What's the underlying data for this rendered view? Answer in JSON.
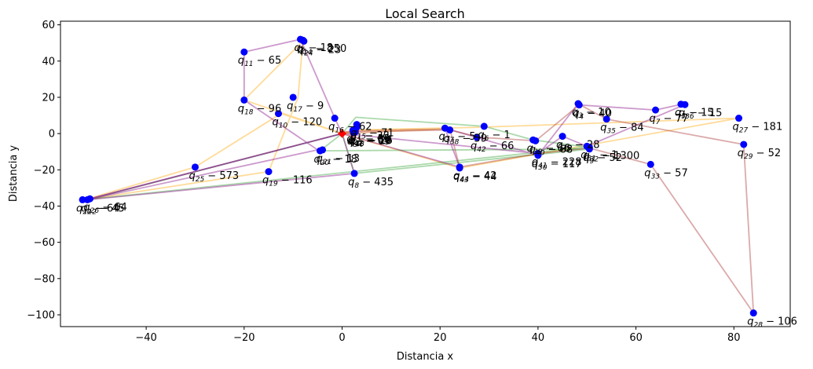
{
  "chart_data": {
    "type": "scatter",
    "title": "Local Search",
    "xlabel": "Distancia x",
    "ylabel": "Distancia y",
    "xlim": [
      -57.5,
      91.5
    ],
    "ylim": [
      -106.5,
      62
    ],
    "xticks": [
      -40,
      -20,
      0,
      20,
      40,
      60,
      80
    ],
    "yticks": [
      -100,
      -80,
      -60,
      -40,
      -20,
      0,
      20,
      40,
      60
    ],
    "grid": false,
    "point_color": "#0000ff",
    "depot": {
      "x": 0,
      "y": 0,
      "color": "#ff0000",
      "marker": "diamond"
    },
    "points": [
      {
        "x": 3.0,
        "y": 3.5,
        "label": "q_{1}-33"
      },
      {
        "x": -8.5,
        "y": 52.0,
        "label": "q_{2}-18"
      },
      {
        "x": 48.2,
        "y": 16.5,
        "label": "q_{3}-10"
      },
      {
        "x": 48.4,
        "y": 15.8,
        "label": "q_{4}-40"
      },
      {
        "x": 69.2,
        "y": 16.2,
        "label": "q_{5}-15"
      },
      {
        "x": 29.0,
        "y": 4.0,
        "label": "q_{6}-1"
      },
      {
        "x": 64.0,
        "y": 13.0,
        "label": "q_{7}-77"
      },
      {
        "x": 2.5,
        "y": -22.0,
        "label": "q_{8}-435"
      },
      {
        "x": 50.5,
        "y": -8.5,
        "label": "q_{9}-52"
      },
      {
        "x": -13.0,
        "y": 11.0,
        "label": "q_{10}-120"
      },
      {
        "x": -20.0,
        "y": 45.0,
        "label": "q_{11}-65"
      },
      {
        "x": -52.0,
        "y": -36.5,
        "label": "q_{12}-45"
      },
      {
        "x": 2.7,
        "y": 1.0,
        "label": "q_{13}-26"
      },
      {
        "x": -8.0,
        "y": 51.5,
        "label": "q_{14}-250"
      },
      {
        "x": 3.0,
        "y": 5.0,
        "label": "q_{15}-71"
      },
      {
        "x": -1.5,
        "y": 8.5,
        "label": "q_{16}-62"
      },
      {
        "x": -10.0,
        "y": 20.0,
        "label": "q_{17}-9"
      },
      {
        "x": -20.0,
        "y": 18.5,
        "label": "q_{18}-96"
      },
      {
        "x": -15.0,
        "y": -21.0,
        "label": "q_{19}-116"
      },
      {
        "x": -4.5,
        "y": -9.5,
        "label": "q_{20}-18"
      },
      {
        "x": -4.0,
        "y": -9.0,
        "label": "q_{21}-13"
      },
      {
        "x": -53.0,
        "y": -36.5,
        "label": "q_{22}-64"
      },
      {
        "x": 2.2,
        "y": 1.8,
        "label": "q_{23}-65"
      },
      {
        "x": -7.8,
        "y": 51.0,
        "label": "q_{24}-23"
      },
      {
        "x": -30.0,
        "y": -18.5,
        "label": "q_{25}-573"
      },
      {
        "x": -51.5,
        "y": -36.0,
        "label": "q_{26}-64"
      },
      {
        "x": 81.0,
        "y": 8.5,
        "label": "q_{27}-181"
      },
      {
        "x": 84.0,
        "y": -99.0,
        "label": "q_{28}-106"
      },
      {
        "x": 82.0,
        "y": -6.0,
        "label": "q_{29}-52"
      },
      {
        "x": 40.0,
        "y": -12.0,
        "label": "q_{30}-117"
      },
      {
        "x": 50.0,
        "y": -7.0,
        "label": "q_{31}-1"
      },
      {
        "x": 50.5,
        "y": -7.5,
        "label": "q_{32}-1300"
      },
      {
        "x": 63.0,
        "y": -17.0,
        "label": "q_{33}-57"
      },
      {
        "x": 2.3,
        "y": 0.5,
        "label": "q_{34}-69"
      },
      {
        "x": 54.0,
        "y": 8.0,
        "label": "q_{35}-84"
      },
      {
        "x": 70.0,
        "y": 16.0,
        "label": "q_{36}-15"
      },
      {
        "x": 21.0,
        "y": 3.0,
        "label": "q_{37}-5"
      },
      {
        "x": 22.0,
        "y": 2.0,
        "label": "q_{38}-59"
      },
      {
        "x": 39.0,
        "y": -3.5,
        "label": "q_{39}-66"
      },
      {
        "x": 39.5,
        "y": -4.0,
        "label": "q_{40}-68"
      },
      {
        "x": 40.0,
        "y": -11.0,
        "label": "q_{41}-228"
      },
      {
        "x": 27.5,
        "y": -2.0,
        "label": "q_{42}-66"
      },
      {
        "x": 24.0,
        "y": -19.0,
        "label": "q_{43}-44"
      },
      {
        "x": 24.0,
        "y": -18.5,
        "label": "q_{44}-42"
      },
      {
        "x": 45.0,
        "y": -1.5,
        "label": "q_{45}-28"
      },
      {
        "x": 2.6,
        "y": 0.8,
        "label": "q_{46}-10"
      },
      {
        "x": 2.4,
        "y": 1.2,
        "label": "q_{47}-59"
      }
    ],
    "routes": [
      {
        "color": "#ffa500",
        "path": [
          [
            0,
            0
          ],
          [
            -12.5,
            11
          ],
          [
            -30,
            -18.5
          ],
          [
            -52.5,
            -36.5
          ],
          [
            -15,
            -21
          ],
          [
            -9,
            20
          ],
          [
            -8,
            51
          ],
          [
            -20,
            18.5
          ],
          [
            0,
            0
          ]
        ]
      },
      {
        "color": "#ffa500",
        "path": [
          [
            0,
            0
          ],
          [
            24,
            -19
          ],
          [
            81,
            8.5
          ],
          [
            28,
            3.5
          ],
          [
            3,
            2
          ],
          [
            0,
            0
          ]
        ]
      },
      {
        "color": "#2ca02c",
        "path": [
          [
            0,
            0
          ],
          [
            2.8,
            9.0
          ],
          [
            29,
            4
          ],
          [
            39,
            -3.5
          ],
          [
            50,
            -7.5
          ],
          [
            -51.5,
            -36.2
          ],
          [
            0,
            0
          ]
        ]
      },
      {
        "color": "#2ca02c",
        "path": [
          [
            0,
            0
          ],
          [
            -4.5,
            -9.5
          ],
          [
            50.5,
            -8.5
          ],
          [
            2.5,
            -22
          ],
          [
            0,
            0
          ]
        ]
      },
      {
        "color": "#800080",
        "path": [
          [
            0,
            0
          ],
          [
            -1.5,
            8.5
          ],
          [
            -8.5,
            52
          ],
          [
            -20,
            45
          ],
          [
            -20,
            18.5
          ],
          [
            -5,
            -9
          ],
          [
            -52,
            -36.5
          ],
          [
            -51.5,
            -36
          ],
          [
            0,
            0
          ]
        ]
      },
      {
        "color": "#800080",
        "path": [
          [
            0,
            0
          ],
          [
            24,
            -18.5
          ],
          [
            21,
            3
          ],
          [
            40,
            -12
          ],
          [
            48.2,
            16.5
          ],
          [
            48.4,
            15.8
          ],
          [
            64,
            13
          ],
          [
            69,
            16
          ],
          [
            70,
            16
          ],
          [
            50,
            -7
          ],
          [
            45,
            -1.5
          ],
          [
            40,
            -11
          ],
          [
            0,
            0
          ]
        ]
      },
      {
        "color": "#800080",
        "path": [
          [
            0,
            0
          ],
          [
            2.5,
            -22
          ],
          [
            -52,
            -36.5
          ],
          [
            -51.5,
            -36
          ],
          [
            0,
            0
          ]
        ]
      },
      {
        "color": "#a52a2a",
        "path": [
          [
            0,
            0
          ],
          [
            2.5,
            1
          ],
          [
            22,
            2
          ],
          [
            28,
            -2
          ],
          [
            39.5,
            -4
          ],
          [
            48.5,
            16
          ],
          [
            54,
            8
          ],
          [
            82,
            -6
          ],
          [
            84,
            -99
          ],
          [
            63,
            -17
          ],
          [
            50.5,
            -8
          ],
          [
            40,
            -11
          ],
          [
            24,
            -18.5
          ],
          [
            22,
            2.5
          ],
          [
            0,
            1
          ]
        ]
      },
      {
        "color": "#d2691e",
        "path": [
          [
            0,
            0
          ],
          [
            2.5,
            1.5
          ],
          [
            21,
            2.5
          ],
          [
            0,
            0
          ]
        ]
      }
    ]
  }
}
